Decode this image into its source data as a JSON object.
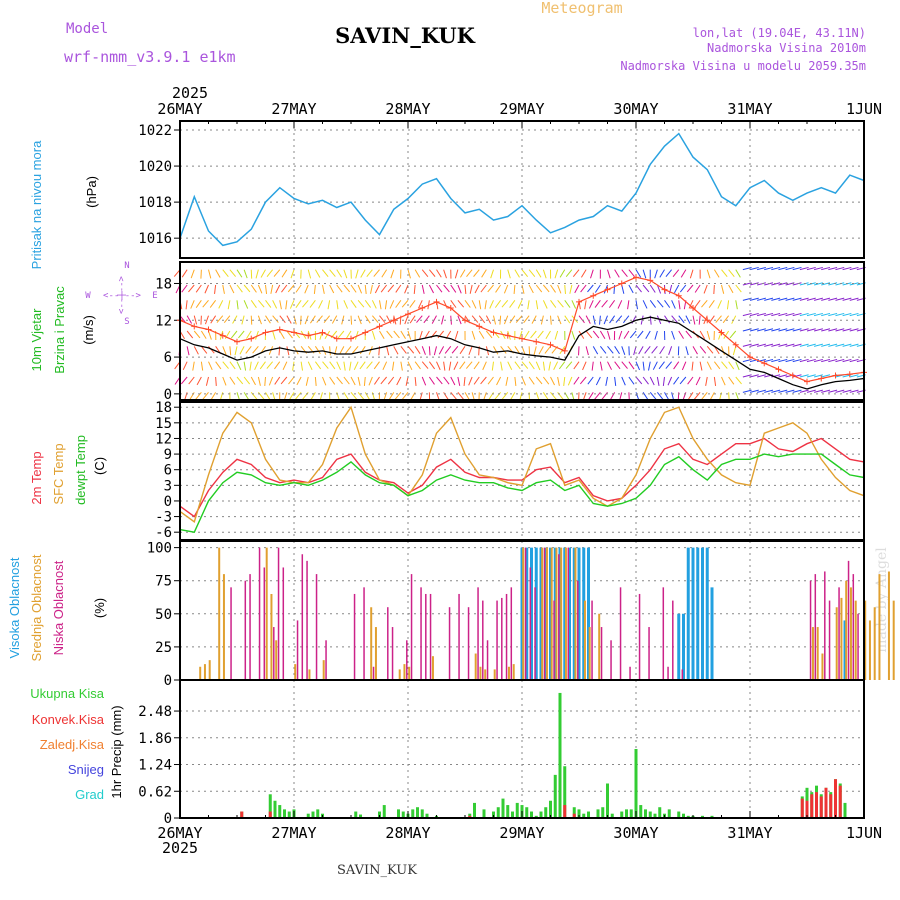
{
  "header": {
    "model_label": "Model",
    "model_name": "wrf-nmm_v3.9.1 e1km",
    "station_title": "SAVIN_KUK",
    "meteogram_label": "Meteogram",
    "lonlat": "lon,lat (19.04E, 43.11N)",
    "altitude": "Nadmorska Visina 2010m",
    "model_altitude": "Nadmorska Visina u modelu 2059.35m",
    "year_top": "2025",
    "year_bottom": "2025",
    "footer_station": "SAVIN_KUK",
    "watermark": "made by Angel"
  },
  "colors": {
    "pressure": "#2aa2e0",
    "wind_speed": "#000000",
    "wind_gust": "#ff4a2a",
    "t2m": "#ee3344",
    "tsfc": "#e0a030",
    "dewpoint": "#22cc22",
    "cloud_high": "#22a0e0",
    "cloud_mid": "#e0a030",
    "cloud_low": "#cc2288",
    "precip_total": "#33cc33",
    "precip_conv": "#ee3333",
    "precip_frozen": "#f08030",
    "precip_snow": "#4444dd",
    "precip_hail": "#22cccc",
    "meteogram_label": "#f0c070",
    "header_purple": "#aa55dd"
  },
  "panels": {
    "pressure": {
      "labels": [
        "Pritisak na nivou mora",
        "(hPa)"
      ]
    },
    "wind": {
      "labels": [
        "10m Vjetar",
        "Brzina i Pravac",
        "(m/s)"
      ],
      "compass": {
        "n": "N",
        "s": "S",
        "e": "E",
        "w": "W",
        "arrow_ns": "<--|-->",
        "arrow_ew": "<--|-->"
      }
    },
    "temp": {
      "labels": [
        "2m Temp",
        "SFC Temp",
        "dewpt Temp",
        "(C)"
      ]
    },
    "cloud": {
      "labels": [
        "Visoka Oblacnost",
        "Srednja Oblacnost",
        "Niska Oblacnost",
        "(%)"
      ]
    },
    "precip": {
      "labels": [
        "1hr Precip (mm)"
      ],
      "legend": [
        "Ukupna Kisa",
        "Konvek.Kisa",
        "Zaledj.Kisa",
        "Snijeg",
        "Grad"
      ]
    }
  },
  "chart_data": [
    {
      "type": "line",
      "name": "pressure",
      "x_ticks": [
        "26MAY",
        "27MAY",
        "28MAY",
        "29MAY",
        "30MAY",
        "31MAY",
        "1JUN"
      ],
      "ylabel": "(hPa)",
      "ylim": [
        1014.9,
        1022.5
      ],
      "y_ticks": [
        1016,
        1018,
        1020,
        1022
      ],
      "grid": true,
      "x_hours": [
        0,
        3,
        6,
        9,
        12,
        15,
        18,
        21,
        24,
        27,
        30,
        33,
        36,
        39,
        42,
        45,
        48,
        51,
        54,
        57,
        60,
        63,
        66,
        69,
        72,
        75,
        78,
        81,
        84,
        87,
        90,
        93,
        96,
        99,
        102,
        105,
        108,
        111,
        114,
        117,
        120,
        123,
        126,
        129,
        132,
        135,
        138,
        141,
        144
      ],
      "values": [
        1016.0,
        1018.3,
        1016.4,
        1015.6,
        1015.8,
        1016.5,
        1018.0,
        1018.8,
        1018.2,
        1017.9,
        1018.1,
        1017.7,
        1018.0,
        1017.0,
        1016.2,
        1017.6,
        1018.2,
        1019.0,
        1019.3,
        1018.2,
        1017.4,
        1017.6,
        1017.0,
        1017.2,
        1017.8,
        1017.0,
        1016.3,
        1016.6,
        1017.0,
        1017.2,
        1017.8,
        1017.5,
        1018.5,
        1020.1,
        1021.1,
        1021.8,
        1020.5,
        1019.8,
        1018.3,
        1017.8,
        1018.8,
        1019.2,
        1018.5,
        1018.1,
        1018.5,
        1018.8,
        1018.5,
        1019.5,
        1019.2
      ]
    },
    {
      "type": "line",
      "name": "wind",
      "x_ticks": [
        "26MAY",
        "27MAY",
        "28MAY",
        "29MAY",
        "30MAY",
        "31MAY",
        "1JUN"
      ],
      "ylabel": "(m/s)",
      "ylim": [
        -1,
        21.5
      ],
      "y_ticks": [
        0,
        6,
        12,
        18
      ],
      "grid": true,
      "x_hours": [
        0,
        3,
        6,
        9,
        12,
        15,
        18,
        21,
        24,
        27,
        30,
        33,
        36,
        39,
        42,
        45,
        48,
        51,
        54,
        57,
        60,
        63,
        66,
        69,
        72,
        75,
        78,
        81,
        84,
        87,
        90,
        93,
        96,
        99,
        102,
        105,
        108,
        111,
        114,
        117,
        120,
        123,
        126,
        129,
        132,
        135,
        138,
        141,
        144
      ],
      "series": [
        {
          "name": "wind_speed",
          "values": [
            9,
            8,
            7.5,
            6.5,
            5.5,
            6,
            7,
            7.5,
            7,
            6.8,
            7,
            6.5,
            6.5,
            7,
            7.5,
            8,
            8.5,
            9,
            9.5,
            9,
            8,
            7.5,
            6.8,
            7,
            6.5,
            6.2,
            6,
            5.5,
            9.5,
            11,
            10.5,
            11,
            12,
            12.5,
            12,
            11.5,
            10,
            8.5,
            7,
            5.5,
            4,
            3.5,
            2.5,
            1.5,
            0.8,
            1.5,
            2,
            2.2,
            2.5
          ]
        },
        {
          "name": "wind_gust",
          "values": [
            12,
            11,
            10.5,
            9.5,
            8.5,
            9,
            10,
            10.5,
            10,
            9.5,
            10,
            9,
            9,
            10,
            11,
            12,
            13,
            14,
            15,
            14,
            12,
            11,
            10,
            9.5,
            9,
            8.5,
            8,
            7,
            15,
            16,
            17,
            18,
            19,
            18.5,
            17,
            16,
            14,
            12,
            10,
            8,
            6,
            5,
            4,
            3,
            2,
            2.5,
            3,
            3.2,
            3.5
          ]
        }
      ]
    },
    {
      "type": "line",
      "name": "temperature",
      "x_ticks": [
        "26MAY",
        "27MAY",
        "28MAY",
        "29MAY",
        "30MAY",
        "31MAY",
        "1JUN"
      ],
      "ylabel": "(C)",
      "ylim": [
        -7.5,
        19
      ],
      "y_ticks": [
        -6,
        -3,
        0,
        3,
        6,
        9,
        12,
        15,
        18
      ],
      "grid": true,
      "x_hours": [
        0,
        3,
        6,
        9,
        12,
        15,
        18,
        21,
        24,
        27,
        30,
        33,
        36,
        39,
        42,
        45,
        48,
        51,
        54,
        57,
        60,
        63,
        66,
        69,
        72,
        75,
        78,
        81,
        84,
        87,
        90,
        93,
        96,
        99,
        102,
        105,
        108,
        111,
        114,
        117,
        120,
        123,
        126,
        129,
        132,
        135,
        138,
        141,
        144
      ],
      "series": [
        {
          "name": "2m Temp",
          "values": [
            -1,
            -3,
            2,
            5.5,
            8,
            7,
            4.5,
            3.5,
            4,
            3.5,
            4.5,
            8,
            9,
            5.5,
            4,
            3.5,
            1.5,
            3,
            6.5,
            8,
            5.5,
            4.5,
            4.5,
            4,
            4,
            6,
            6.5,
            3.5,
            4.5,
            1,
            0,
            0.5,
            3,
            6,
            10,
            11,
            8,
            7,
            9,
            11,
            11,
            12,
            10,
            9.5,
            11,
            12,
            10,
            8,
            7.5
          ]
        },
        {
          "name": "SFC Temp",
          "values": [
            -2,
            -4,
            5,
            13,
            17,
            15,
            8,
            4,
            3.5,
            3.5,
            7,
            14,
            18,
            9,
            4,
            3,
            1,
            5,
            13,
            16,
            9,
            5,
            4.5,
            3.5,
            3,
            10,
            11,
            3,
            4,
            0.5,
            -1,
            0.5,
            5,
            12,
            17,
            18,
            12,
            8,
            5,
            3.5,
            3,
            13,
            14,
            15,
            13,
            8,
            4.5,
            2,
            1
          ]
        },
        {
          "name": "dewpt Temp",
          "values": [
            -5.5,
            -6,
            0,
            3.5,
            5.5,
            5,
            3.5,
            3,
            3.5,
            3,
            4,
            5.5,
            7.5,
            5,
            3.5,
            3,
            1,
            2,
            4,
            5,
            4,
            3.5,
            3.5,
            2.5,
            2,
            3.5,
            4,
            2,
            3,
            -0.5,
            -1,
            -0.5,
            0.5,
            3,
            7,
            8.5,
            6,
            4,
            7,
            8,
            8,
            9,
            8.5,
            9,
            9,
            9,
            7,
            5,
            4.5
          ]
        }
      ]
    },
    {
      "type": "bar",
      "name": "cloud",
      "x_ticks": [
        "26MAY",
        "27MAY",
        "28MAY",
        "29MAY",
        "30MAY",
        "31MAY",
        "1JUN"
      ],
      "ylabel": "(%)",
      "ylim": [
        0,
        105
      ],
      "y_ticks": [
        0,
        25,
        50,
        75,
        100
      ],
      "grid": true,
      "series": [
        {
          "name": "Visoka Oblacnost",
          "hours": [
            72,
            73,
            74,
            75,
            76,
            77,
            78,
            79,
            80,
            81,
            82,
            83,
            84,
            85,
            86,
            105,
            106,
            107,
            108,
            109,
            110,
            111,
            112,
            140
          ],
          "values": [
            100,
            100,
            100,
            100,
            100,
            100,
            100,
            100,
            100,
            100,
            100,
            100,
            100,
            100,
            100,
            50,
            50,
            100,
            100,
            100,
            100,
            100,
            70,
            45
          ]
        },
        {
          "name": "Srednja Oblacnost",
          "hours": [
            4,
            5,
            6,
            8,
            9,
            18,
            19,
            20,
            24,
            27,
            30,
            40,
            41,
            46,
            47,
            48,
            53,
            62,
            63,
            64,
            66,
            69,
            70,
            72,
            76,
            77,
            78,
            79,
            80,
            81,
            83,
            85,
            86,
            88,
            133,
            134,
            135,
            138,
            139,
            140,
            141,
            142,
            144,
            145,
            146,
            147,
            149,
            150,
            152,
            153
          ],
          "values": [
            10,
            12,
            15,
            100,
            80,
            100,
            65,
            30,
            12,
            8,
            15,
            55,
            40,
            8,
            12,
            10,
            18,
            20,
            10,
            8,
            8,
            10,
            12,
            100,
            100,
            100,
            100,
            100,
            100,
            100,
            100,
            60,
            40,
            50,
            40,
            40,
            20,
            55,
            62,
            75,
            70,
            60,
            60,
            45,
            55,
            80,
            82,
            60,
            45,
            25
          ]
        },
        {
          "name": "Niska Oblacnost",
          "hours": [
            11,
            14,
            15,
            17,
            18,
            20,
            21,
            22,
            25,
            26,
            27,
            29,
            31,
            37,
            39,
            41,
            44,
            45,
            48,
            49,
            51,
            52,
            53,
            57,
            59,
            61,
            63,
            64,
            65,
            67,
            68,
            69,
            70,
            73,
            74,
            75,
            77,
            79,
            80,
            82,
            84,
            87,
            89,
            91,
            93,
            95,
            97,
            99,
            102,
            103,
            104,
            106,
            133,
            134,
            136,
            137,
            139,
            141,
            142,
            143
          ],
          "values": [
            70,
            75,
            80,
            100,
            85,
            40,
            100,
            85,
            45,
            95,
            90,
            80,
            30,
            65,
            70,
            10,
            55,
            40,
            30,
            80,
            70,
            65,
            65,
            55,
            65,
            55,
            70,
            60,
            30,
            60,
            62,
            65,
            70,
            100,
            85,
            70,
            100,
            60,
            95,
            100,
            75,
            60,
            40,
            30,
            70,
            10,
            65,
            40,
            70,
            10,
            60,
            8,
            75,
            80,
            82,
            60,
            70,
            90,
            80,
            50
          ]
        }
      ]
    },
    {
      "type": "bar",
      "name": "precipitation",
      "x_ticks": [
        "26MAY",
        "27MAY",
        "28MAY",
        "29MAY",
        "30MAY",
        "31MAY",
        "1JUN"
      ],
      "ylabel": "1hr Precip (mm)",
      "ylim": [
        0,
        3.2
      ],
      "y_ticks": [
        0,
        0.62,
        1.24,
        1.86,
        2.48
      ],
      "grid": true,
      "series": [
        {
          "name": "Ukupna Kisa",
          "hours": [
            13,
            19,
            20,
            21,
            22,
            23,
            24,
            27,
            28,
            29,
            30,
            37,
            38,
            42,
            43,
            46,
            47,
            48,
            49,
            50,
            51,
            52,
            54,
            61,
            62,
            64,
            66,
            67,
            68,
            69,
            70,
            71,
            72,
            73,
            74,
            75,
            76,
            77,
            78,
            79,
            80,
            81,
            83,
            84,
            85,
            86,
            88,
            89,
            90,
            91,
            93,
            94,
            95,
            96,
            97,
            98,
            99,
            100,
            101,
            102,
            103,
            105,
            106,
            107,
            108,
            110,
            112,
            131,
            132,
            133,
            134,
            135,
            136,
            137,
            138,
            139,
            140
          ],
          "values": [
            0.15,
            0.55,
            0.4,
            0.3,
            0.2,
            0.15,
            0.2,
            0.1,
            0.15,
            0.2,
            0.1,
            0.15,
            0.08,
            0.15,
            0.3,
            0.2,
            0.15,
            0.1,
            0.2,
            0.25,
            0.2,
            0.1,
            0.05,
            0.1,
            0.35,
            0.2,
            0.15,
            0.25,
            0.45,
            0.3,
            0.15,
            0.35,
            0.3,
            0.25,
            0.15,
            0.05,
            0.15,
            0.25,
            0.4,
            1.0,
            2.9,
            1.2,
            0.25,
            0.2,
            0.1,
            0.15,
            0.2,
            0.25,
            0.8,
            0.1,
            0.15,
            0.2,
            0.2,
            1.6,
            0.3,
            0.2,
            0.15,
            0.1,
            0.25,
            0.1,
            0.2,
            0.15,
            0.1,
            0.05,
            0.05,
            0.05,
            0.05,
            0.5,
            0.7,
            0.6,
            0.75,
            0.55,
            0.7,
            0.6,
            0.9,
            0.8,
            0.35
          ]
        },
        {
          "name": "Konvek.Kisa",
          "hours": [
            13,
            19,
            61,
            81,
            83,
            131,
            132,
            133,
            134,
            135,
            136,
            137,
            138,
            139
          ],
          "values": [
            0.15,
            0.15,
            0.05,
            0.3,
            0.1,
            0.45,
            0.4,
            0.55,
            0.6,
            0.5,
            0.7,
            0.55,
            0.9,
            0.75
          ]
        }
      ]
    }
  ]
}
